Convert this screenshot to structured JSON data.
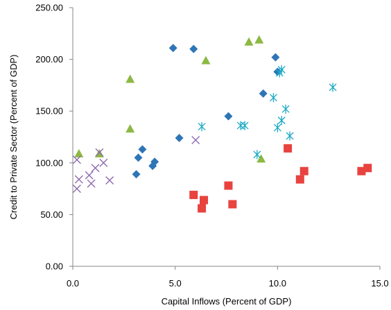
{
  "chart_data": {
    "type": "scatter",
    "xlabel": "Capital Inflows  (Percent of GDP)",
    "ylabel": "Credit to Private Sector (Percent of GDP)",
    "xlim": [
      0,
      15
    ],
    "ylim": [
      0,
      250
    ],
    "x_ticks": [
      "0.0",
      "5.0",
      "10.0",
      "15.0"
    ],
    "y_ticks": [
      "0.00",
      "50.00",
      "100.00",
      "150.00",
      "200.00",
      "250.00"
    ],
    "grid": false,
    "legend": "none",
    "series": [
      {
        "marker": "diamond",
        "color": "#2E75B6",
        "points": [
          [
            4.9,
            211
          ],
          [
            5.9,
            210
          ],
          [
            9.9,
            202
          ],
          [
            10.0,
            188
          ],
          [
            9.3,
            167
          ],
          [
            7.6,
            145
          ],
          [
            5.2,
            124
          ],
          [
            3.4,
            113
          ],
          [
            3.2,
            105
          ],
          [
            4.0,
            101
          ],
          [
            3.9,
            97
          ],
          [
            3.1,
            89
          ]
        ]
      },
      {
        "marker": "square",
        "color": "#E8433F",
        "points": [
          [
            10.5,
            114
          ],
          [
            11.3,
            92
          ],
          [
            11.1,
            84
          ],
          [
            14.4,
            95
          ],
          [
            14.1,
            92
          ],
          [
            7.6,
            78
          ],
          [
            5.9,
            69
          ],
          [
            6.4,
            64
          ],
          [
            7.8,
            60
          ],
          [
            6.3,
            56
          ]
        ]
      },
      {
        "marker": "triangle",
        "color": "#8DB843",
        "points": [
          [
            9.1,
            219
          ],
          [
            8.6,
            217
          ],
          [
            6.5,
            199
          ],
          [
            2.8,
            181
          ],
          [
            2.8,
            133
          ],
          [
            0.3,
            109
          ],
          [
            1.3,
            109
          ],
          [
            9.2,
            104
          ]
        ]
      },
      {
        "marker": "x",
        "color": "#8E6BB0",
        "points": [
          [
            1.3,
            110
          ],
          [
            0.2,
            103
          ],
          [
            1.5,
            100
          ],
          [
            0.3,
            84
          ],
          [
            0.8,
            88
          ],
          [
            1.8,
            83
          ],
          [
            1.1,
            95
          ],
          [
            0.9,
            80
          ],
          [
            0.2,
            75
          ],
          [
            6.0,
            122
          ]
        ]
      },
      {
        "marker": "star",
        "color": "#1AA9C4",
        "points": [
          [
            10.2,
            190
          ],
          [
            10.1,
            187
          ],
          [
            12.7,
            173
          ],
          [
            9.8,
            163
          ],
          [
            10.4,
            152
          ],
          [
            10.2,
            141
          ],
          [
            10.0,
            134
          ],
          [
            8.2,
            136
          ],
          [
            8.4,
            136
          ],
          [
            6.3,
            135
          ],
          [
            10.6,
            126
          ],
          [
            9.0,
            108
          ]
        ]
      }
    ]
  }
}
